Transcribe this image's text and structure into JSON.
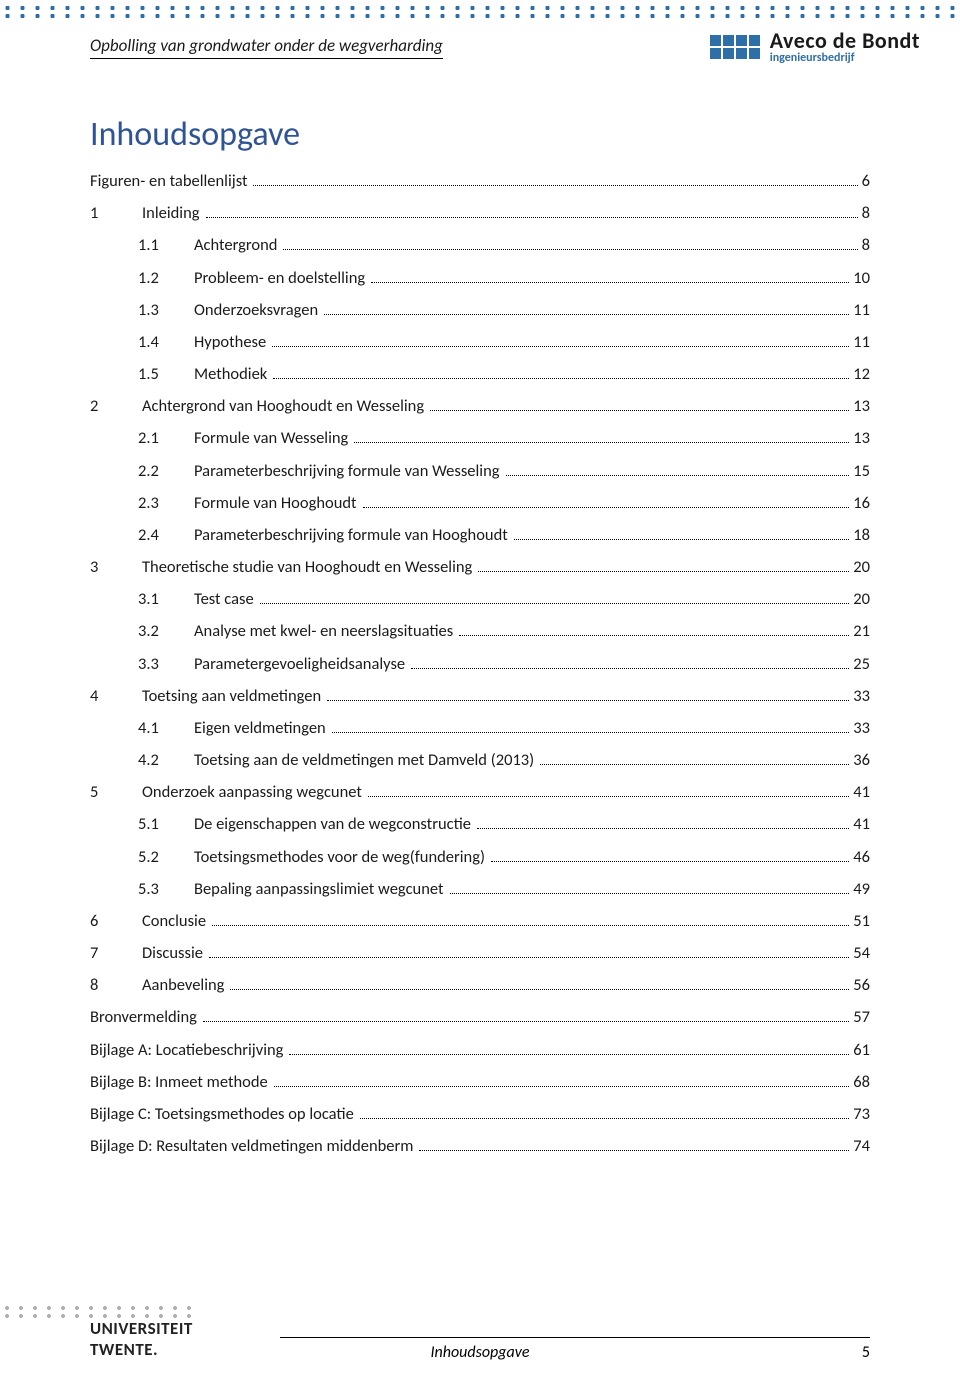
{
  "header": {
    "title": "Opbolling van grondwater onder de wegverharding",
    "company": "Aveco de Bondt",
    "subtitle": "ingenieursbedrijf"
  },
  "toc_title": "Inhoudsopgave",
  "entries": [
    {
      "level": 0,
      "num": "",
      "label": "Figuren- en tabellenlijst",
      "page": "6"
    },
    {
      "level": 1,
      "num": "1",
      "label": "Inleiding",
      "page": "8"
    },
    {
      "level": 2,
      "num": "1.1",
      "label": "Achtergrond",
      "page": "8"
    },
    {
      "level": 2,
      "num": "1.2",
      "label": "Probleem- en doelstelling",
      "page": "10"
    },
    {
      "level": 2,
      "num": "1.3",
      "label": "Onderzoeksvragen",
      "page": "11"
    },
    {
      "level": 2,
      "num": "1.4",
      "label": "Hypothese",
      "page": "11"
    },
    {
      "level": 2,
      "num": "1.5",
      "label": "Methodiek",
      "page": "12"
    },
    {
      "level": 1,
      "num": "2",
      "label": "Achtergrond van Hooghoudt en Wesseling",
      "page": "13"
    },
    {
      "level": 2,
      "num": "2.1",
      "label": "Formule van Wesseling",
      "page": "13"
    },
    {
      "level": 2,
      "num": "2.2",
      "label": "Parameterbeschrijving formule van Wesseling",
      "page": "15"
    },
    {
      "level": 2,
      "num": "2.3",
      "label": "Formule van Hooghoudt",
      "page": "16"
    },
    {
      "level": 2,
      "num": "2.4",
      "label": "Parameterbeschrijving formule van Hooghoudt",
      "page": "18"
    },
    {
      "level": 1,
      "num": "3",
      "label": "Theoretische studie van Hooghoudt en Wesseling",
      "page": "20"
    },
    {
      "level": 2,
      "num": "3.1",
      "label": "Test case",
      "page": "20"
    },
    {
      "level": 2,
      "num": "3.2",
      "label": "Analyse met kwel- en neerslagsituaties",
      "page": "21"
    },
    {
      "level": 2,
      "num": "3.3",
      "label": "Parametergevoeligheidsanalyse",
      "page": "25"
    },
    {
      "level": 1,
      "num": "4",
      "label": "Toetsing aan veldmetingen",
      "page": "33"
    },
    {
      "level": 2,
      "num": "4.1",
      "label": "Eigen veldmetingen",
      "page": "33"
    },
    {
      "level": 2,
      "num": "4.2",
      "label": "Toetsing aan de veldmetingen met Damveld (2013)",
      "page": "36"
    },
    {
      "level": 1,
      "num": "5",
      "label": "Onderzoek aanpassing wegcunet",
      "page": "41"
    },
    {
      "level": 2,
      "num": "5.1",
      "label": "De eigenschappen van de wegconstructie",
      "page": "41"
    },
    {
      "level": 2,
      "num": "5.2",
      "label": "Toetsingsmethodes voor de weg(fundering)",
      "page": "46"
    },
    {
      "level": 2,
      "num": "5.3",
      "label": "Bepaling aanpassingslimiet wegcunet",
      "page": "49"
    },
    {
      "level": 1,
      "num": "6",
      "label": "Conclusie",
      "page": "51"
    },
    {
      "level": 1,
      "num": "7",
      "label": "Discussie",
      "page": "54"
    },
    {
      "level": 1,
      "num": "8",
      "label": "Aanbeveling",
      "page": "56"
    },
    {
      "level": 0,
      "num": "",
      "label": "Bronvermelding",
      "page": "57"
    },
    {
      "level": 0,
      "num": "",
      "label": "Bijlage A: Locatiebeschrijving",
      "page": "61"
    },
    {
      "level": 0,
      "num": "",
      "label": "Bijlage B: Inmeet methode",
      "page": "68"
    },
    {
      "level": 0,
      "num": "",
      "label": "Bijlage C: Toetsingsmethodes op locatie",
      "page": "73"
    },
    {
      "level": 0,
      "num": "",
      "label": "Bijlage D: Resultaten veldmetingen middenberm",
      "page": "74"
    }
  ],
  "footer": {
    "uni_line1": "UNIVERSITEIT",
    "uni_line2": "TWENTE.",
    "center": "Inhoudsopgave",
    "page_number": "5"
  },
  "colors": {
    "accent": "#2f6fa8",
    "heading": "#2f5496",
    "text": "#1a1a1a",
    "footer_dots": "#aeb0b2"
  },
  "fonts": {
    "base_size_pt": 12,
    "heading_size_pt": 26
  }
}
